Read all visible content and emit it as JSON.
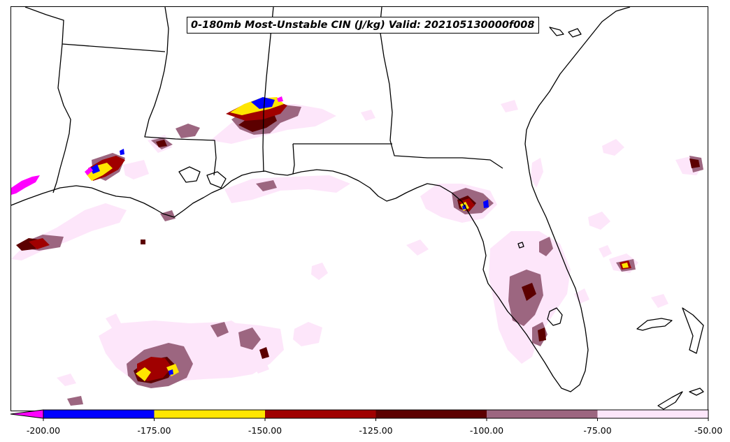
{
  "title": "0-180mb Most-Unstable CIN (J/kg) Valid: 202105130000f008",
  "colorbar": {
    "extend": "min",
    "under_color": "#ff00ff",
    "ticks": [
      "-200.00",
      "-175.00",
      "-150.00",
      "-125.00",
      "-100.00",
      "-75.00",
      "-50.00"
    ],
    "bins": [
      {
        "from": -200,
        "to": -175,
        "color": "#0000ff"
      },
      {
        "from": -175,
        "to": -150,
        "color": "#ffe600"
      },
      {
        "from": -150,
        "to": -125,
        "color": "#a00000"
      },
      {
        "from": -125,
        "to": -100,
        "color": "#5c0000"
      },
      {
        "from": -100,
        "to": -75,
        "color": "#9c6680"
      },
      {
        "from": -75,
        "to": -50,
        "color": "#fde6fa"
      }
    ]
  }
}
